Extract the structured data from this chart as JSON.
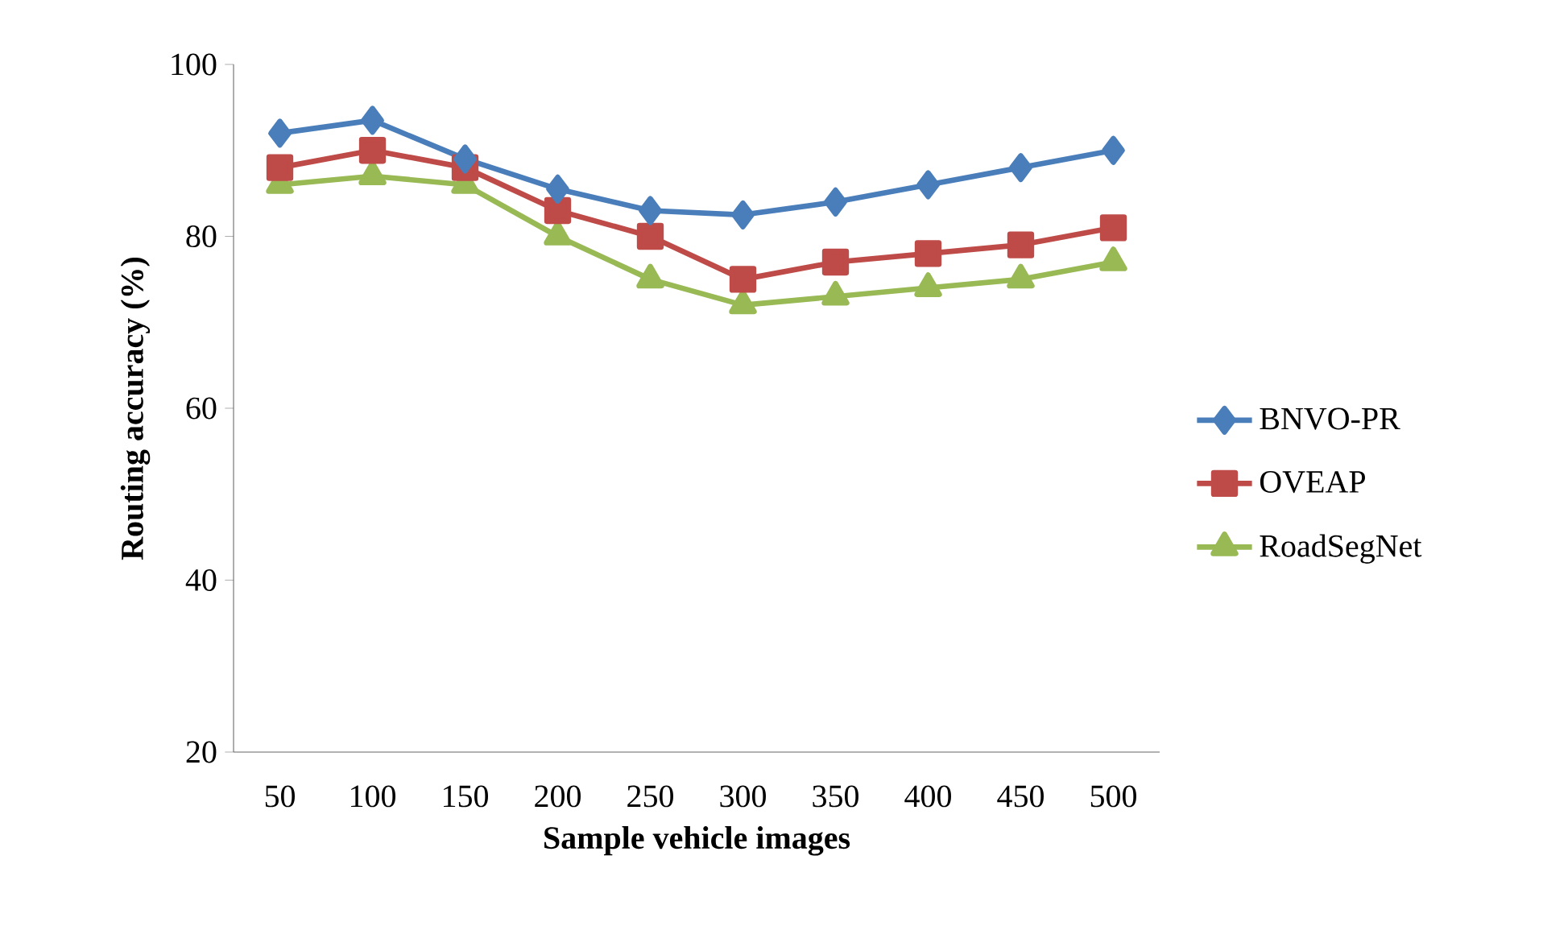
{
  "chart_data": {
    "type": "line",
    "xlabel": "Sample vehicle images",
    "ylabel": "Routing accuracy (%)",
    "categories": [
      "50",
      "100",
      "150",
      "200",
      "250",
      "300",
      "350",
      "400",
      "450",
      "500"
    ],
    "series": [
      {
        "name": "BNVO-PR",
        "color": "#4a7ebb",
        "marker": "diamond",
        "values": [
          92,
          93.5,
          89,
          85.5,
          83,
          82.5,
          84,
          86,
          88,
          90
        ]
      },
      {
        "name": "OVEAP",
        "color": "#be4b48",
        "marker": "square",
        "values": [
          88,
          90,
          88,
          83,
          80,
          75,
          77,
          78,
          79,
          81
        ]
      },
      {
        "name": "RoadSegNet",
        "color": "#98b954",
        "marker": "triangle",
        "values": [
          86,
          87,
          86,
          80,
          75,
          72,
          73,
          74,
          75,
          77
        ]
      }
    ],
    "ylim": [
      20,
      100
    ],
    "yticks": [
      20,
      40,
      60,
      80,
      100
    ],
    "grid": false,
    "legend": "right",
    "line_style": "solid"
  }
}
